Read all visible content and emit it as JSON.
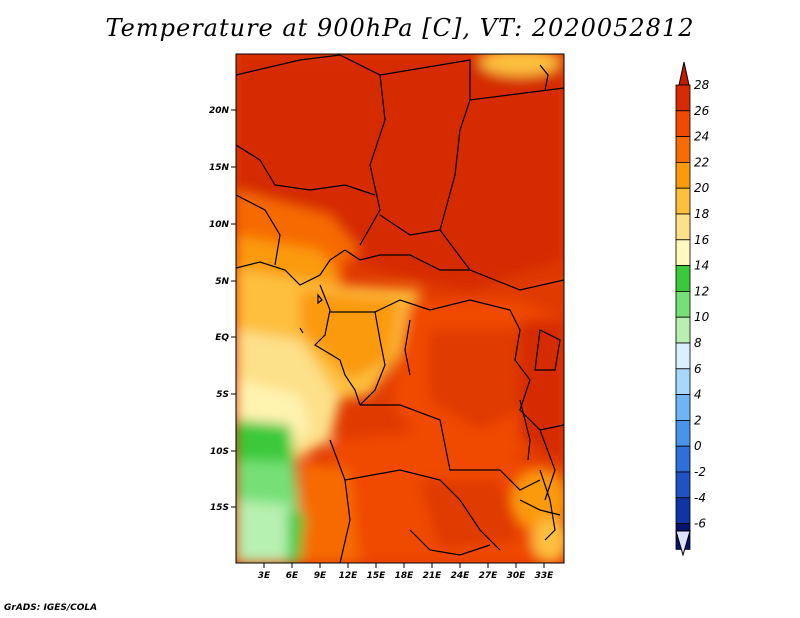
{
  "title": "Temperature at 900hPa [C], VT: 2020052812",
  "credit": "GrADS: IGES/COLA",
  "map": {
    "lon_labels": [
      "3E",
      "6E",
      "9E",
      "12E",
      "15E",
      "18E",
      "21E",
      "24E",
      "27E",
      "30E",
      "33E"
    ],
    "lat_labels": [
      "20N",
      "15N",
      "10N",
      "5N",
      "EQ",
      "5S",
      "10S",
      "15S"
    ]
  },
  "colorbar": {
    "levels": [
      "28",
      "26",
      "24",
      "22",
      "20",
      "18",
      "16",
      "14",
      "12",
      "10",
      "8",
      "6",
      "4",
      "2",
      "0",
      "-2",
      "-4",
      "-6"
    ],
    "colors": [
      "#d62b00",
      "#f04a00",
      "#f76b00",
      "#fb9a0c",
      "#fdbf3c",
      "#fde08a",
      "#fff8bf",
      "#3bc93b",
      "#76e076",
      "#b8f0b0",
      "#d8f0ff",
      "#a7d7fb",
      "#6fb5f3",
      "#4a93ea",
      "#2f6fd9",
      "#1f52c4",
      "#0f34a4",
      "#06136e"
    ],
    "top_cap_color": "#c41a00",
    "bottom_cap_color": "#dde4ff"
  }
}
